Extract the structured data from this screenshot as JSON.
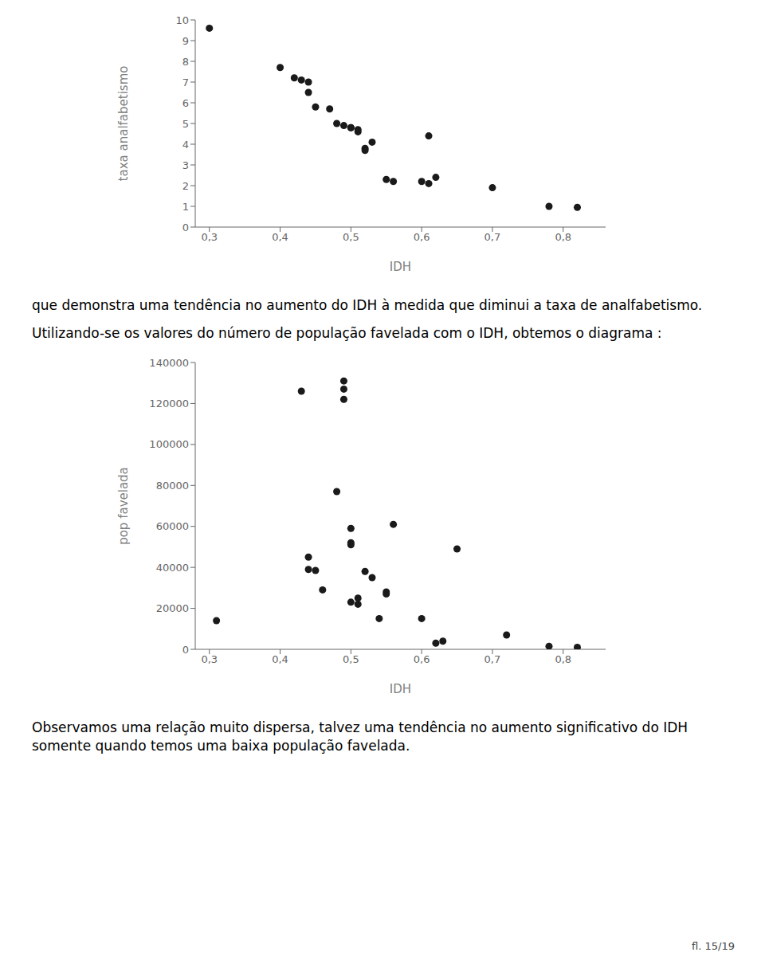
{
  "chart_data": [
    {
      "type": "scatter",
      "x": [
        0.3,
        0.4,
        0.42,
        0.43,
        0.44,
        0.44,
        0.45,
        0.47,
        0.48,
        0.49,
        0.5,
        0.5,
        0.51,
        0.51,
        0.52,
        0.52,
        0.53,
        0.55,
        0.56,
        0.6,
        0.61,
        0.61,
        0.62,
        0.7,
        0.78,
        0.82
      ],
      "values": [
        9.6,
        7.7,
        7.2,
        7.1,
        7.0,
        6.5,
        5.8,
        5.7,
        5.0,
        4.9,
        4.8,
        4.8,
        4.7,
        4.6,
        3.8,
        3.7,
        4.1,
        2.3,
        2.2,
        2.2,
        2.1,
        4.4,
        2.4,
        1.9,
        1.0,
        0.95
      ],
      "color": "#1a1a1a",
      "xlabel": "IDH",
      "ylabel": "taxa analfabetismo",
      "xlim": [
        0.28,
        0.86
      ],
      "ylim": [
        0,
        10
      ],
      "xticks": [
        {
          "value": 0.3,
          "label": "0,3"
        },
        {
          "value": 0.4,
          "label": "0,4"
        },
        {
          "value": 0.5,
          "label": "0,5"
        },
        {
          "value": 0.6,
          "label": "0,6"
        },
        {
          "value": 0.7,
          "label": "0,7"
        },
        {
          "value": 0.8,
          "label": "0,8"
        }
      ],
      "yticks": [
        0,
        1,
        2,
        3,
        4,
        5,
        6,
        7,
        8,
        9,
        10
      ],
      "grid": false,
      "annotations": [
        "que demonstra uma tendência no aumento do IDH à medida que diminui a taxa de analfabetismo.",
        "Utilizando-se os valores do número de população favelada com o IDH, obtemos o diagrama :"
      ]
    },
    {
      "type": "scatter",
      "x": [
        0.31,
        0.43,
        0.44,
        0.44,
        0.45,
        0.46,
        0.48,
        0.49,
        0.49,
        0.49,
        0.5,
        0.5,
        0.5,
        0.5,
        0.51,
        0.51,
        0.52,
        0.53,
        0.54,
        0.55,
        0.55,
        0.56,
        0.6,
        0.62,
        0.63,
        0.65,
        0.72,
        0.78,
        0.82
      ],
      "values": [
        14000,
        126000,
        45000,
        39000,
        38500,
        29000,
        77000,
        127000,
        131000,
        122000,
        59000,
        52000,
        51000,
        23000,
        25000,
        22000,
        38000,
        35000,
        15000,
        27000,
        28000,
        61000,
        15000,
        3000,
        4000,
        49000,
        7000,
        1500,
        1000
      ],
      "color": "#1a1a1a",
      "xlabel": "IDH",
      "ylabel": "pop favelada",
      "xlim": [
        0.28,
        0.86
      ],
      "ylim": [
        0,
        140000
      ],
      "xticks": [
        {
          "value": 0.3,
          "label": "0,3"
        },
        {
          "value": 0.4,
          "label": "0,4"
        },
        {
          "value": 0.5,
          "label": "0,5"
        },
        {
          "value": 0.6,
          "label": "0,6"
        },
        {
          "value": 0.7,
          "label": "0,7"
        },
        {
          "value": 0.8,
          "label": "0,8"
        }
      ],
      "yticks": [
        0,
        20000,
        40000,
        60000,
        80000,
        100000,
        120000,
        140000
      ],
      "grid": false,
      "annotations": [
        "Observamos uma relação muito dispersa, talvez uma tendência no aumento significativo do IDH\nsomente quando temos uma baixa população favelada.",
        "fl. 15/19"
      ]
    }
  ]
}
